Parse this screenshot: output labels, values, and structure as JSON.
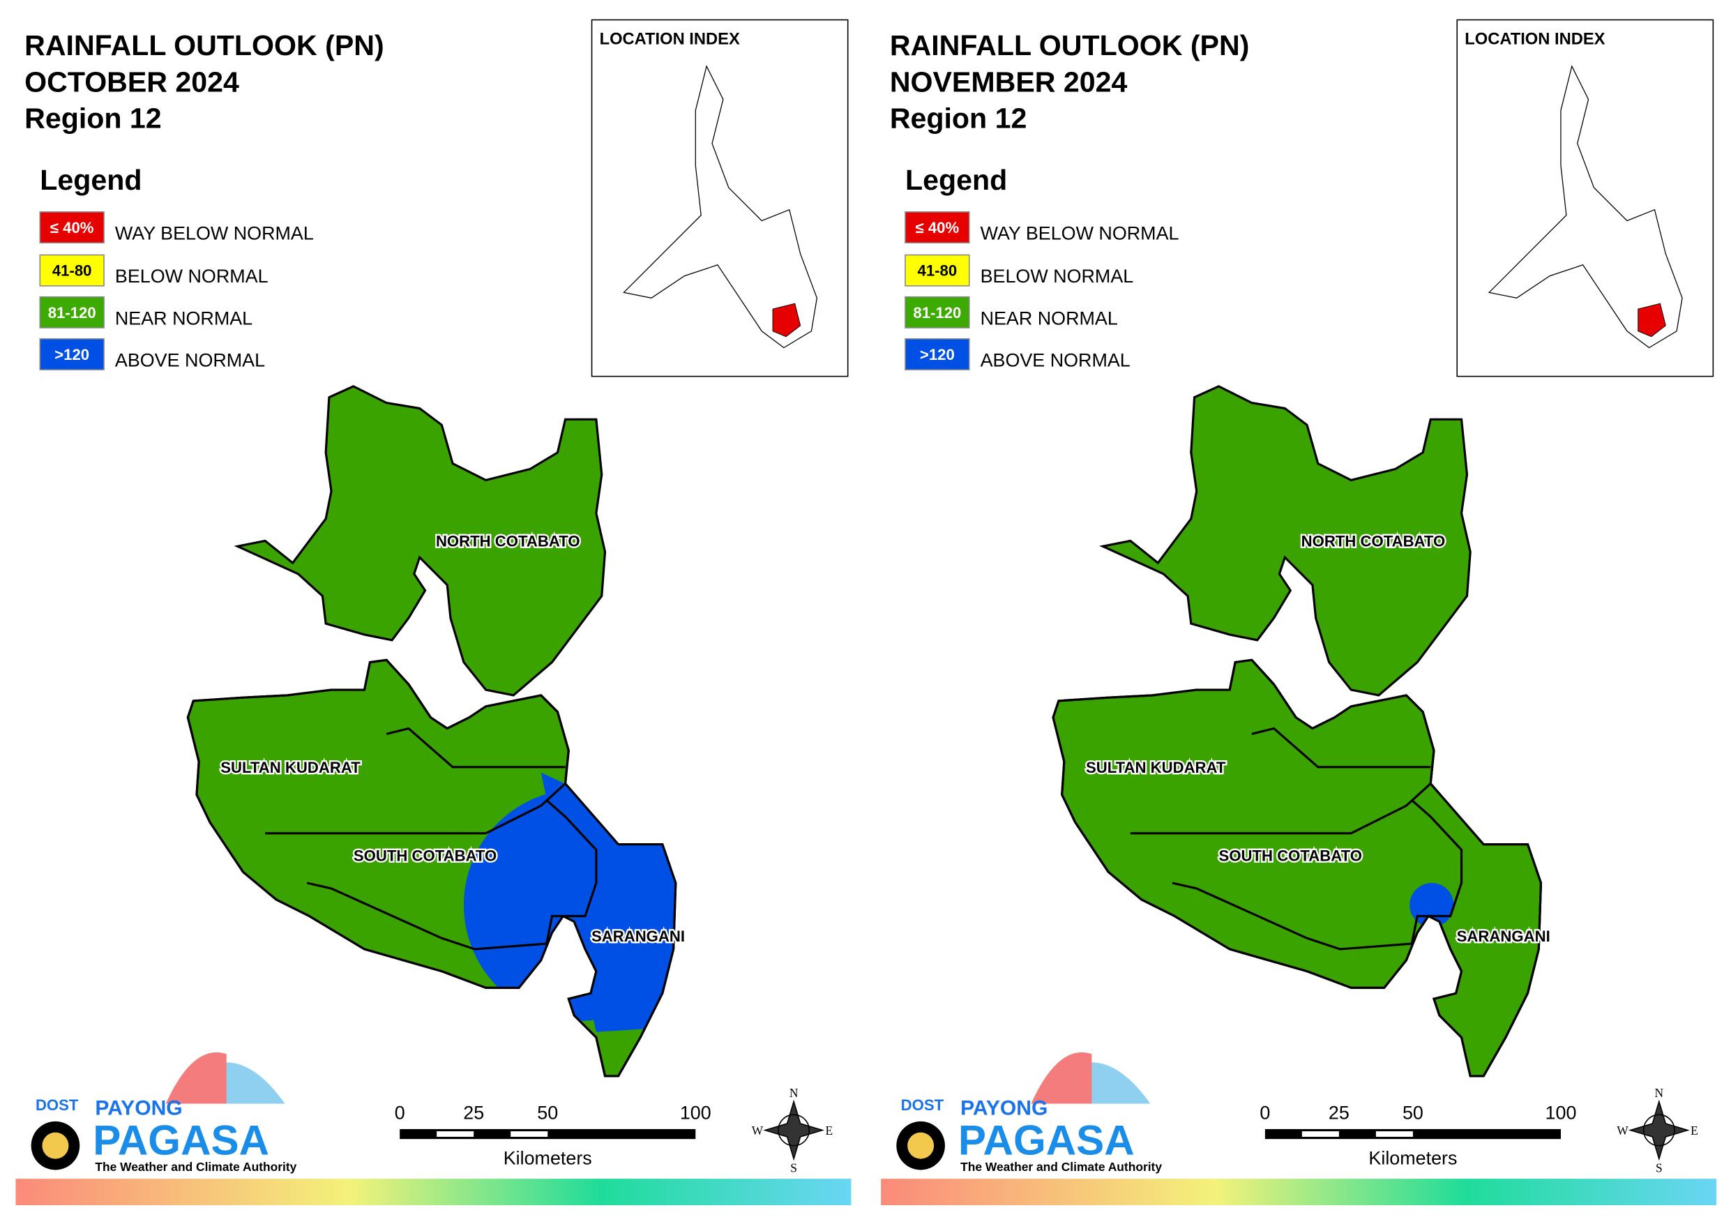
{
  "panels": [
    {
      "title": [
        "RAINFALL OUTLOOK (PN)",
        "OCTOBER 2024",
        "Region 12"
      ],
      "legend_title": "Legend",
      "legend": [
        {
          "label": "≤ 40%",
          "text": "WAY BELOW NORMAL",
          "color": "#e60000"
        },
        {
          "label": "41-80",
          "text": "BELOW NORMAL",
          "color": "#ffff00"
        },
        {
          "label": "81-120",
          "text": "NEAR NORMAL",
          "color": "#3daa00"
        },
        {
          "label": ">120",
          "text": "ABOVE NORMAL",
          "color": "#0050e6"
        }
      ],
      "location_index": "LOCATION INDEX",
      "provinces": [
        "NORTH COTABATO",
        "SULTAN KUDARAT",
        "SOUTH COTABATO",
        "SARANGANI"
      ],
      "scale": {
        "ticks": [
          0,
          25,
          50,
          100
        ],
        "unit": "Kilometers"
      },
      "compass": [
        "N",
        "E",
        "S",
        "W"
      ],
      "logo": {
        "dost": "DOST",
        "payong": "PAYONG",
        "pagasa": "PAGASA",
        "tagline": "The Weather and Climate Authority"
      }
    },
    {
      "title": [
        "RAINFALL OUTLOOK (PN)",
        "NOVEMBER 2024",
        "Region 12"
      ],
      "legend_title": "Legend",
      "legend": [
        {
          "label": "≤ 40%",
          "text": "WAY BELOW NORMAL",
          "color": "#e60000"
        },
        {
          "label": "41-80",
          "text": "BELOW NORMAL",
          "color": "#ffff00"
        },
        {
          "label": "81-120",
          "text": "NEAR NORMAL",
          "color": "#3daa00"
        },
        {
          "label": ">120",
          "text": "ABOVE NORMAL",
          "color": "#0050e6"
        }
      ],
      "location_index": "LOCATION INDEX",
      "provinces": [
        "NORTH COTABATO",
        "SULTAN KUDARAT",
        "SOUTH COTABATO",
        "SARANGANI"
      ],
      "scale": {
        "ticks": [
          0,
          25,
          50,
          100
        ],
        "unit": "Kilometers"
      },
      "compass": [
        "N",
        "E",
        "S",
        "W"
      ],
      "logo": {
        "dost": "DOST",
        "payong": "PAYONG",
        "pagasa": "PAGASA",
        "tagline": "The Weather and Climate Authority"
      }
    }
  ]
}
